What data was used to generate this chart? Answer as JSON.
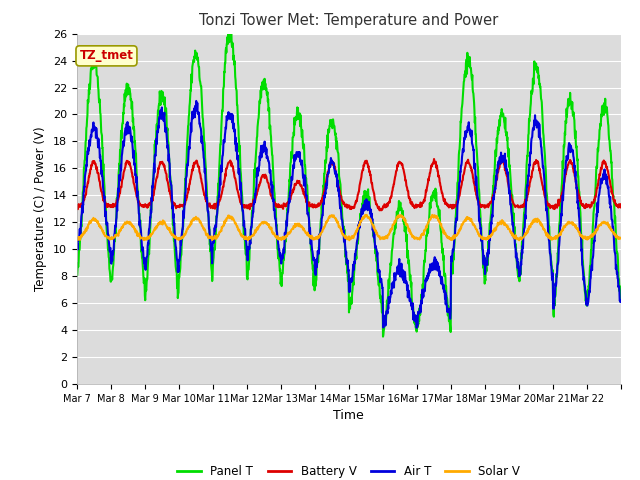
{
  "title": "Tonzi Tower Met: Temperature and Power",
  "xlabel": "Time",
  "ylabel": "Temperature (C) / Power (V)",
  "ylim": [
    0,
    26
  ],
  "yticks": [
    0,
    2,
    4,
    6,
    8,
    10,
    12,
    14,
    16,
    18,
    20,
    22,
    24,
    26
  ],
  "date_labels": [
    "Mar 7",
    "Mar 8",
    "Mar 9",
    "Mar 10",
    "Mar 11",
    "Mar 12",
    "Mar 13",
    "Mar 14",
    "Mar 15",
    "Mar 16",
    "Mar 17",
    "Mar 18",
    "Mar 19",
    "Mar 20",
    "Mar 21",
    "Mar 22"
  ],
  "legend_labels": [
    "Panel T",
    "Battery V",
    "Air T",
    "Solar V"
  ],
  "legend_colors": [
    "#00dd00",
    "#dd0000",
    "#0000dd",
    "#ffaa00"
  ],
  "fig_bg_color": "#ffffff",
  "plot_bg_color": "#dcdcdc",
  "annotation_text": "TZ_tmet",
  "annotation_bg": "#ffffcc",
  "annotation_fg": "#cc0000",
  "annotation_edge": "#999900",
  "grid_color": "#ffffff",
  "line_width": 1.5,
  "n_days": 16,
  "points_per_day": 96,
  "panel_peaks": [
    24.0,
    22.0,
    21.5,
    24.5,
    26.0,
    22.5,
    20.0,
    19.5,
    14.0,
    13.0,
    14.0,
    24.0,
    20.0,
    23.5,
    21.0,
    20.5
  ],
  "panel_nights": [
    8.0,
    7.5,
    6.5,
    8.0,
    9.0,
    8.0,
    7.5,
    7.5,
    5.5,
    3.7,
    4.0,
    8.0,
    8.0,
    8.0,
    5.5,
    6.5
  ],
  "batt_peaks": [
    16.5,
    16.5,
    16.5,
    16.5,
    16.5,
    15.5,
    15.0,
    16.5,
    16.5,
    16.5,
    16.5,
    16.5,
    16.5,
    16.5,
    16.5,
    16.5
  ],
  "batt_nights": [
    13.2,
    13.2,
    13.2,
    13.2,
    13.2,
    13.2,
    13.2,
    13.2,
    13.0,
    13.2,
    13.2,
    13.2,
    13.2,
    13.2,
    13.2,
    13.2
  ],
  "air_peaks": [
    19.0,
    19.0,
    20.0,
    20.5,
    20.0,
    17.5,
    17.0,
    16.5,
    13.5,
    8.5,
    9.0,
    19.0,
    17.0,
    19.5,
    17.5,
    15.5
  ],
  "air_nights": [
    10.0,
    9.0,
    8.5,
    9.5,
    10.5,
    9.5,
    9.0,
    8.5,
    7.0,
    4.5,
    5.0,
    9.0,
    8.5,
    8.0,
    6.0,
    6.0
  ],
  "solar_peaks": [
    12.2,
    12.0,
    12.0,
    12.3,
    12.4,
    12.0,
    11.8,
    12.5,
    12.5,
    12.5,
    12.5,
    12.3,
    12.0,
    12.2,
    12.0,
    12.0
  ],
  "solar_nights": [
    10.8,
    10.8,
    10.8,
    10.8,
    10.8,
    10.8,
    10.8,
    10.8,
    10.8,
    10.8,
    10.8,
    10.8,
    10.8,
    10.8,
    10.8,
    10.8
  ]
}
